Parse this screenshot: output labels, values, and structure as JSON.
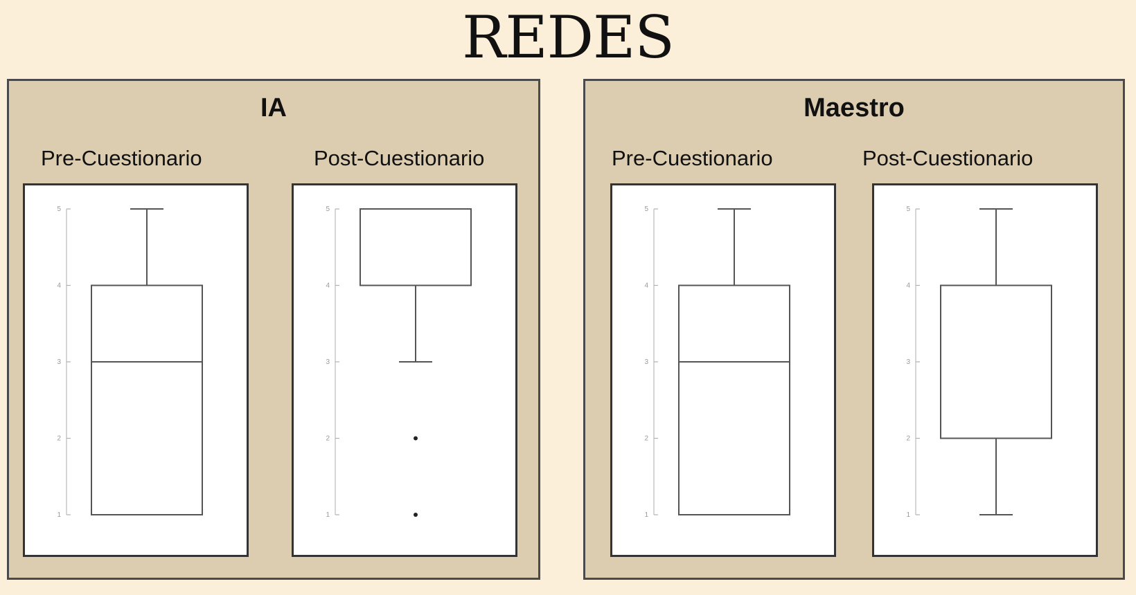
{
  "title": "REDES",
  "panels": [
    {
      "title": "IA",
      "charts": [
        {
          "label": "Pre-Cuestionario"
        },
        {
          "label": "Post-Cuestionario"
        }
      ]
    },
    {
      "title": "Maestro",
      "charts": [
        {
          "label": "Pre-Cuestionario"
        },
        {
          "label": "Post-Cuestionario"
        }
      ]
    }
  ],
  "chart_data": [
    {
      "type": "boxplot",
      "panel": "IA",
      "title": "Pre-Cuestionario",
      "ylim": [
        1,
        5
      ],
      "yticks": [
        1,
        2,
        3,
        4,
        5
      ],
      "box": {
        "whisker_low": 1,
        "q1": 1,
        "median": 3,
        "q3": 4,
        "whisker_high": 5
      },
      "outliers": []
    },
    {
      "type": "boxplot",
      "panel": "IA",
      "title": "Post-Cuestionario",
      "ylim": [
        1,
        5
      ],
      "yticks": [
        1,
        2,
        3,
        4,
        5
      ],
      "box": {
        "whisker_low": 3,
        "q1": 4,
        "median": 5,
        "q3": 5,
        "whisker_high": 5
      },
      "outliers": [
        2,
        1
      ]
    },
    {
      "type": "boxplot",
      "panel": "Maestro",
      "title": "Pre-Cuestionario",
      "ylim": [
        1,
        5
      ],
      "yticks": [
        1,
        2,
        3,
        4,
        5
      ],
      "box": {
        "whisker_low": 1,
        "q1": 1,
        "median": 3,
        "q3": 4,
        "whisker_high": 5
      },
      "outliers": []
    },
    {
      "type": "boxplot",
      "panel": "Maestro",
      "title": "Post-Cuestionario",
      "ylim": [
        1,
        5
      ],
      "yticks": [
        1,
        2,
        3,
        4,
        5
      ],
      "box": {
        "whisker_low": 1,
        "q1": 2,
        "median": 4,
        "q3": 4,
        "whisker_high": 5
      },
      "outliers": []
    }
  ]
}
